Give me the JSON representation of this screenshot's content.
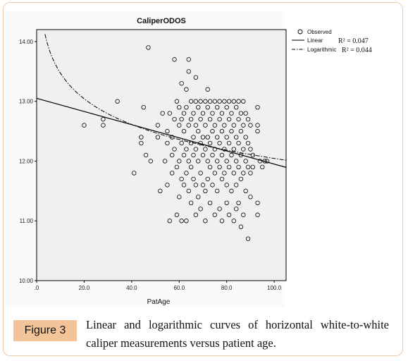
{
  "chart_data": {
    "type": "scatter",
    "title": "CaliperODOS",
    "xlabel": "PatAge",
    "ylabel": "",
    "xlim": [
      0,
      105
    ],
    "ylim": [
      10.0,
      14.2
    ],
    "x_ticks": [
      0,
      20,
      40,
      60,
      80,
      100
    ],
    "x_tick_labels": [
      ".0",
      "20.0",
      "40.0",
      "60.0",
      "80.0",
      "100.0"
    ],
    "y_ticks": [
      10,
      11,
      12,
      13,
      14
    ],
    "y_tick_labels": [
      "10.00",
      "11.00",
      "12.00",
      "13.00",
      "14.00"
    ],
    "grid": false,
    "legend_position": "right",
    "legend": [
      {
        "name": "Observed",
        "marker": "circle"
      },
      {
        "name": "Linear",
        "line": "solid",
        "r2": "R² = 0.047"
      },
      {
        "name": "Logarithmic",
        "line": "dash-dot",
        "r2": "R² = 0.044"
      }
    ],
    "series": [
      {
        "name": "Observed",
        "points": [
          [
            20,
            12.6
          ],
          [
            28,
            12.6
          ],
          [
            28,
            12.7
          ],
          [
            34,
            13.0
          ],
          [
            41,
            11.8
          ],
          [
            44,
            12.4
          ],
          [
            44,
            12.3
          ],
          [
            45,
            12.9
          ],
          [
            46,
            12.1
          ],
          [
            47,
            13.9
          ],
          [
            48,
            12.0
          ],
          [
            51,
            12.6
          ],
          [
            51,
            12.4
          ],
          [
            52,
            11.5
          ],
          [
            53,
            12.8
          ],
          [
            54,
            12.0
          ],
          [
            55,
            12.5
          ],
          [
            55,
            12.3
          ],
          [
            55,
            11.6
          ],
          [
            56,
            12.8
          ],
          [
            56,
            11.0
          ],
          [
            57,
            12.4
          ],
          [
            57,
            12.1
          ],
          [
            57,
            11.8
          ],
          [
            58,
            13.7
          ],
          [
            58,
            12.7
          ],
          [
            58,
            12.2
          ],
          [
            59,
            13.0
          ],
          [
            59,
            11.9
          ],
          [
            59,
            11.1
          ],
          [
            60,
            12.9
          ],
          [
            60,
            12.6
          ],
          [
            60,
            12.0
          ],
          [
            60,
            11.4
          ],
          [
            61,
            13.3
          ],
          [
            61,
            12.7
          ],
          [
            61,
            12.3
          ],
          [
            61,
            11.7
          ],
          [
            61,
            11.0
          ],
          [
            62,
            12.8
          ],
          [
            62,
            12.5
          ],
          [
            62,
            12.1
          ],
          [
            62,
            11.6
          ],
          [
            63,
            13.2
          ],
          [
            63,
            12.9
          ],
          [
            63,
            12.2
          ],
          [
            63,
            11.8
          ],
          [
            63,
            11.0
          ],
          [
            64,
            13.7
          ],
          [
            64,
            13.5
          ],
          [
            64,
            12.6
          ],
          [
            64,
            12.0
          ],
          [
            64,
            11.5
          ],
          [
            65,
            13.0
          ],
          [
            65,
            12.7
          ],
          [
            65,
            12.3
          ],
          [
            65,
            11.9
          ],
          [
            65,
            11.3
          ],
          [
            66,
            12.8
          ],
          [
            66,
            12.4
          ],
          [
            66,
            12.1
          ],
          [
            66,
            11.7
          ],
          [
            67,
            13.4
          ],
          [
            67,
            13.0
          ],
          [
            67,
            12.6
          ],
          [
            67,
            12.2
          ],
          [
            67,
            11.6
          ],
          [
            67,
            11.1
          ],
          [
            68,
            12.9
          ],
          [
            68,
            12.5
          ],
          [
            68,
            12.0
          ],
          [
            68,
            11.4
          ],
          [
            69,
            13.0
          ],
          [
            69,
            12.7
          ],
          [
            69,
            12.3
          ],
          [
            69,
            11.8
          ],
          [
            69,
            11.2
          ],
          [
            70,
            12.8
          ],
          [
            70,
            12.4
          ],
          [
            70,
            12.1
          ],
          [
            70,
            11.6
          ],
          [
            71,
            13.0
          ],
          [
            71,
            12.6
          ],
          [
            71,
            12.2
          ],
          [
            71,
            11.5
          ],
          [
            71,
            11.0
          ],
          [
            72,
            13.2
          ],
          [
            72,
            12.9
          ],
          [
            72,
            12.4
          ],
          [
            72,
            12.0
          ],
          [
            72,
            11.7
          ],
          [
            73,
            13.0
          ],
          [
            73,
            12.7
          ],
          [
            73,
            12.3
          ],
          [
            73,
            11.9
          ],
          [
            73,
            11.3
          ],
          [
            74,
            12.8
          ],
          [
            74,
            12.5
          ],
          [
            74,
            12.1
          ],
          [
            74,
            11.6
          ],
          [
            75,
            13.0
          ],
          [
            75,
            12.6
          ],
          [
            75,
            12.2
          ],
          [
            75,
            11.8
          ],
          [
            75,
            11.1
          ],
          [
            76,
            12.9
          ],
          [
            76,
            12.4
          ],
          [
            76,
            12.0
          ],
          [
            76,
            11.5
          ],
          [
            77,
            13.0
          ],
          [
            77,
            12.7
          ],
          [
            77,
            12.3
          ],
          [
            77,
            11.9
          ],
          [
            77,
            11.2
          ],
          [
            78,
            12.8
          ],
          [
            78,
            12.5
          ],
          [
            78,
            12.1
          ],
          [
            78,
            11.7
          ],
          [
            78,
            11.0
          ],
          [
            79,
            13.0
          ],
          [
            79,
            12.6
          ],
          [
            79,
            12.2
          ],
          [
            79,
            11.8
          ],
          [
            80,
            12.9
          ],
          [
            80,
            12.4
          ],
          [
            80,
            12.0
          ],
          [
            80,
            11.6
          ],
          [
            80,
            11.3
          ],
          [
            81,
            13.0
          ],
          [
            81,
            12.7
          ],
          [
            81,
            12.3
          ],
          [
            81,
            11.9
          ],
          [
            81,
            11.1
          ],
          [
            82,
            12.8
          ],
          [
            82,
            12.5
          ],
          [
            82,
            12.1
          ],
          [
            82,
            11.5
          ],
          [
            83,
            13.0
          ],
          [
            83,
            12.6
          ],
          [
            83,
            12.2
          ],
          [
            83,
            11.8
          ],
          [
            83,
            11.0
          ],
          [
            84,
            12.9
          ],
          [
            84,
            12.4
          ],
          [
            84,
            12.0
          ],
          [
            84,
            11.6
          ],
          [
            84,
            11.2
          ],
          [
            85,
            13.0
          ],
          [
            85,
            12.7
          ],
          [
            85,
            12.3
          ],
          [
            85,
            11.9
          ],
          [
            85,
            11.3
          ],
          [
            86,
            12.8
          ],
          [
            86,
            12.5
          ],
          [
            86,
            12.1
          ],
          [
            86,
            11.7
          ],
          [
            86,
            10.9
          ],
          [
            87,
            13.0
          ],
          [
            87,
            12.6
          ],
          [
            87,
            12.2
          ],
          [
            87,
            11.8
          ],
          [
            87,
            11.1
          ],
          [
            88,
            12.8
          ],
          [
            88,
            12.4
          ],
          [
            88,
            12.0
          ],
          [
            88,
            11.5
          ],
          [
            89,
            12.7
          ],
          [
            89,
            12.3
          ],
          [
            89,
            11.9
          ],
          [
            89,
            10.7
          ],
          [
            90,
            12.6
          ],
          [
            90,
            12.2
          ],
          [
            90,
            11.8
          ],
          [
            90,
            11.4
          ],
          [
            91,
            12.1
          ],
          [
            91,
            11.9
          ],
          [
            93,
            12.9
          ],
          [
            93,
            12.6
          ],
          [
            93,
            12.5
          ],
          [
            93,
            11.3
          ],
          [
            93,
            11.1
          ],
          [
            94,
            12.0
          ],
          [
            95,
            11.9
          ],
          [
            96,
            12.0
          ],
          [
            97,
            12.0
          ]
        ]
      },
      {
        "name": "Linear",
        "fit": "linear",
        "x_range": [
          0,
          105
        ],
        "y_at_x0": 13.05,
        "slope": -0.011
      },
      {
        "name": "Logarithmic",
        "fit": "logarithmic",
        "x_range": [
          3,
          105
        ],
        "intercept": 14.9,
        "coef": -0.62
      }
    ]
  },
  "caption": {
    "figure_label": "Figure 3",
    "text": "Linear and logarithmic curves of horizontal white-to-white caliper measurements versus patient age."
  }
}
